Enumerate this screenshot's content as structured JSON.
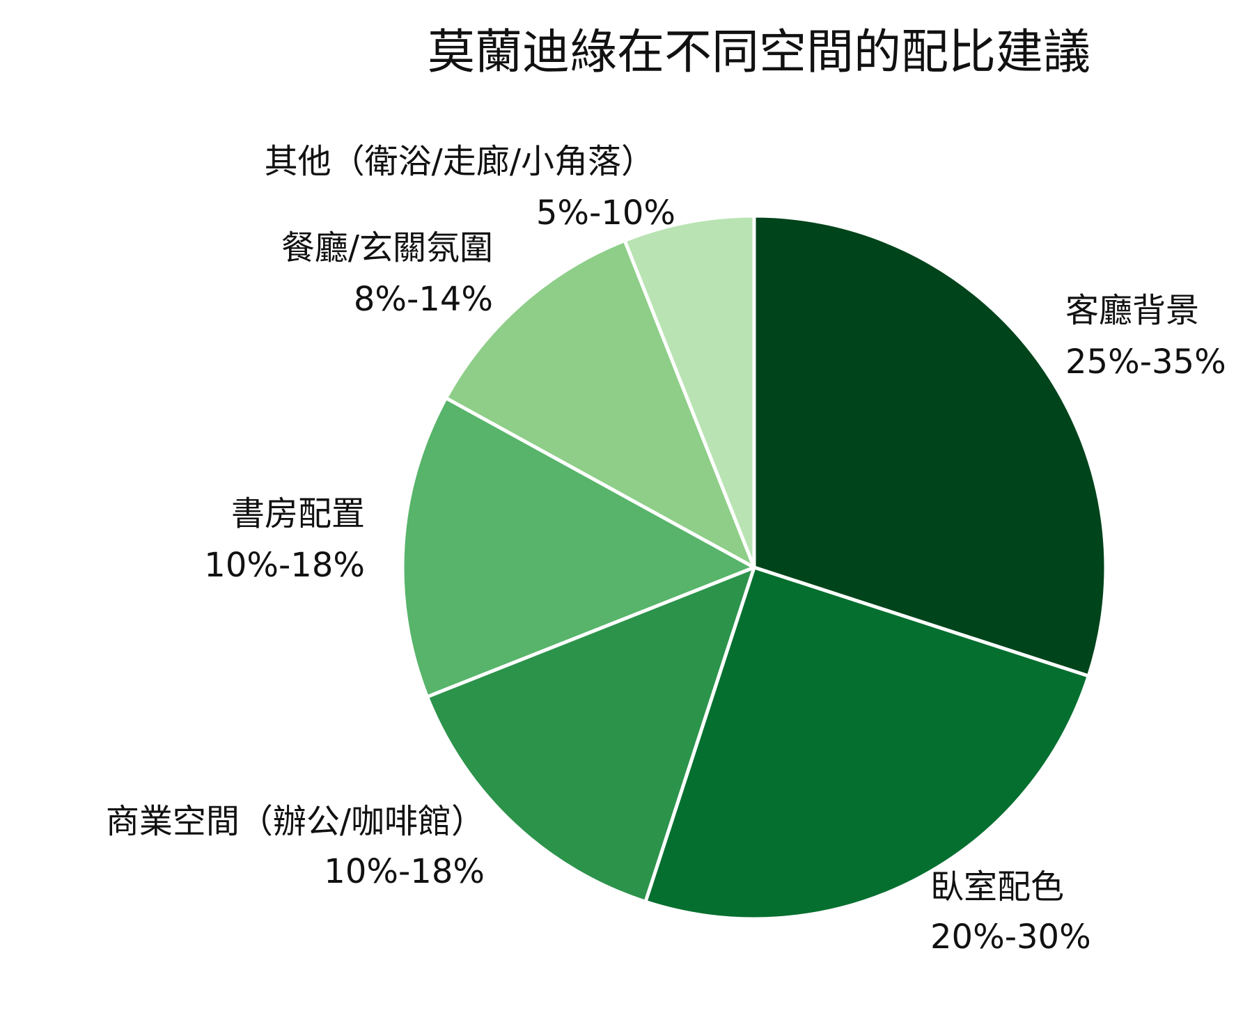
{
  "chart_data": {
    "type": "pie",
    "title": "莫蘭迪綠在不同空間的配比建議",
    "slices": [
      {
        "label": "客廳背景",
        "value_label": "25%-35%",
        "value": 30,
        "color": "#00441b"
      },
      {
        "label": "臥室配色",
        "value_label": "20%-30%",
        "value": 25,
        "color": "#056f2f"
      },
      {
        "label": "商業空間（辦公/咖啡館）",
        "value_label": "10%-18%",
        "value": 14,
        "color": "#2c934b"
      },
      {
        "label": "書房配置",
        "value_label": "10%-18%",
        "value": 14,
        "color": "#57b46a"
      },
      {
        "label": "餐廳/玄關氛圍",
        "value_label": "8%-14%",
        "value": 11,
        "color": "#8ece88"
      },
      {
        "label": "其他（衛浴/走廊/小角落）",
        "value_label": "5%-10%",
        "value": 6,
        "color": "#b9e3b3"
      }
    ],
    "start_angle": "12 o'clock",
    "direction": "clockwise",
    "legend": "none"
  }
}
